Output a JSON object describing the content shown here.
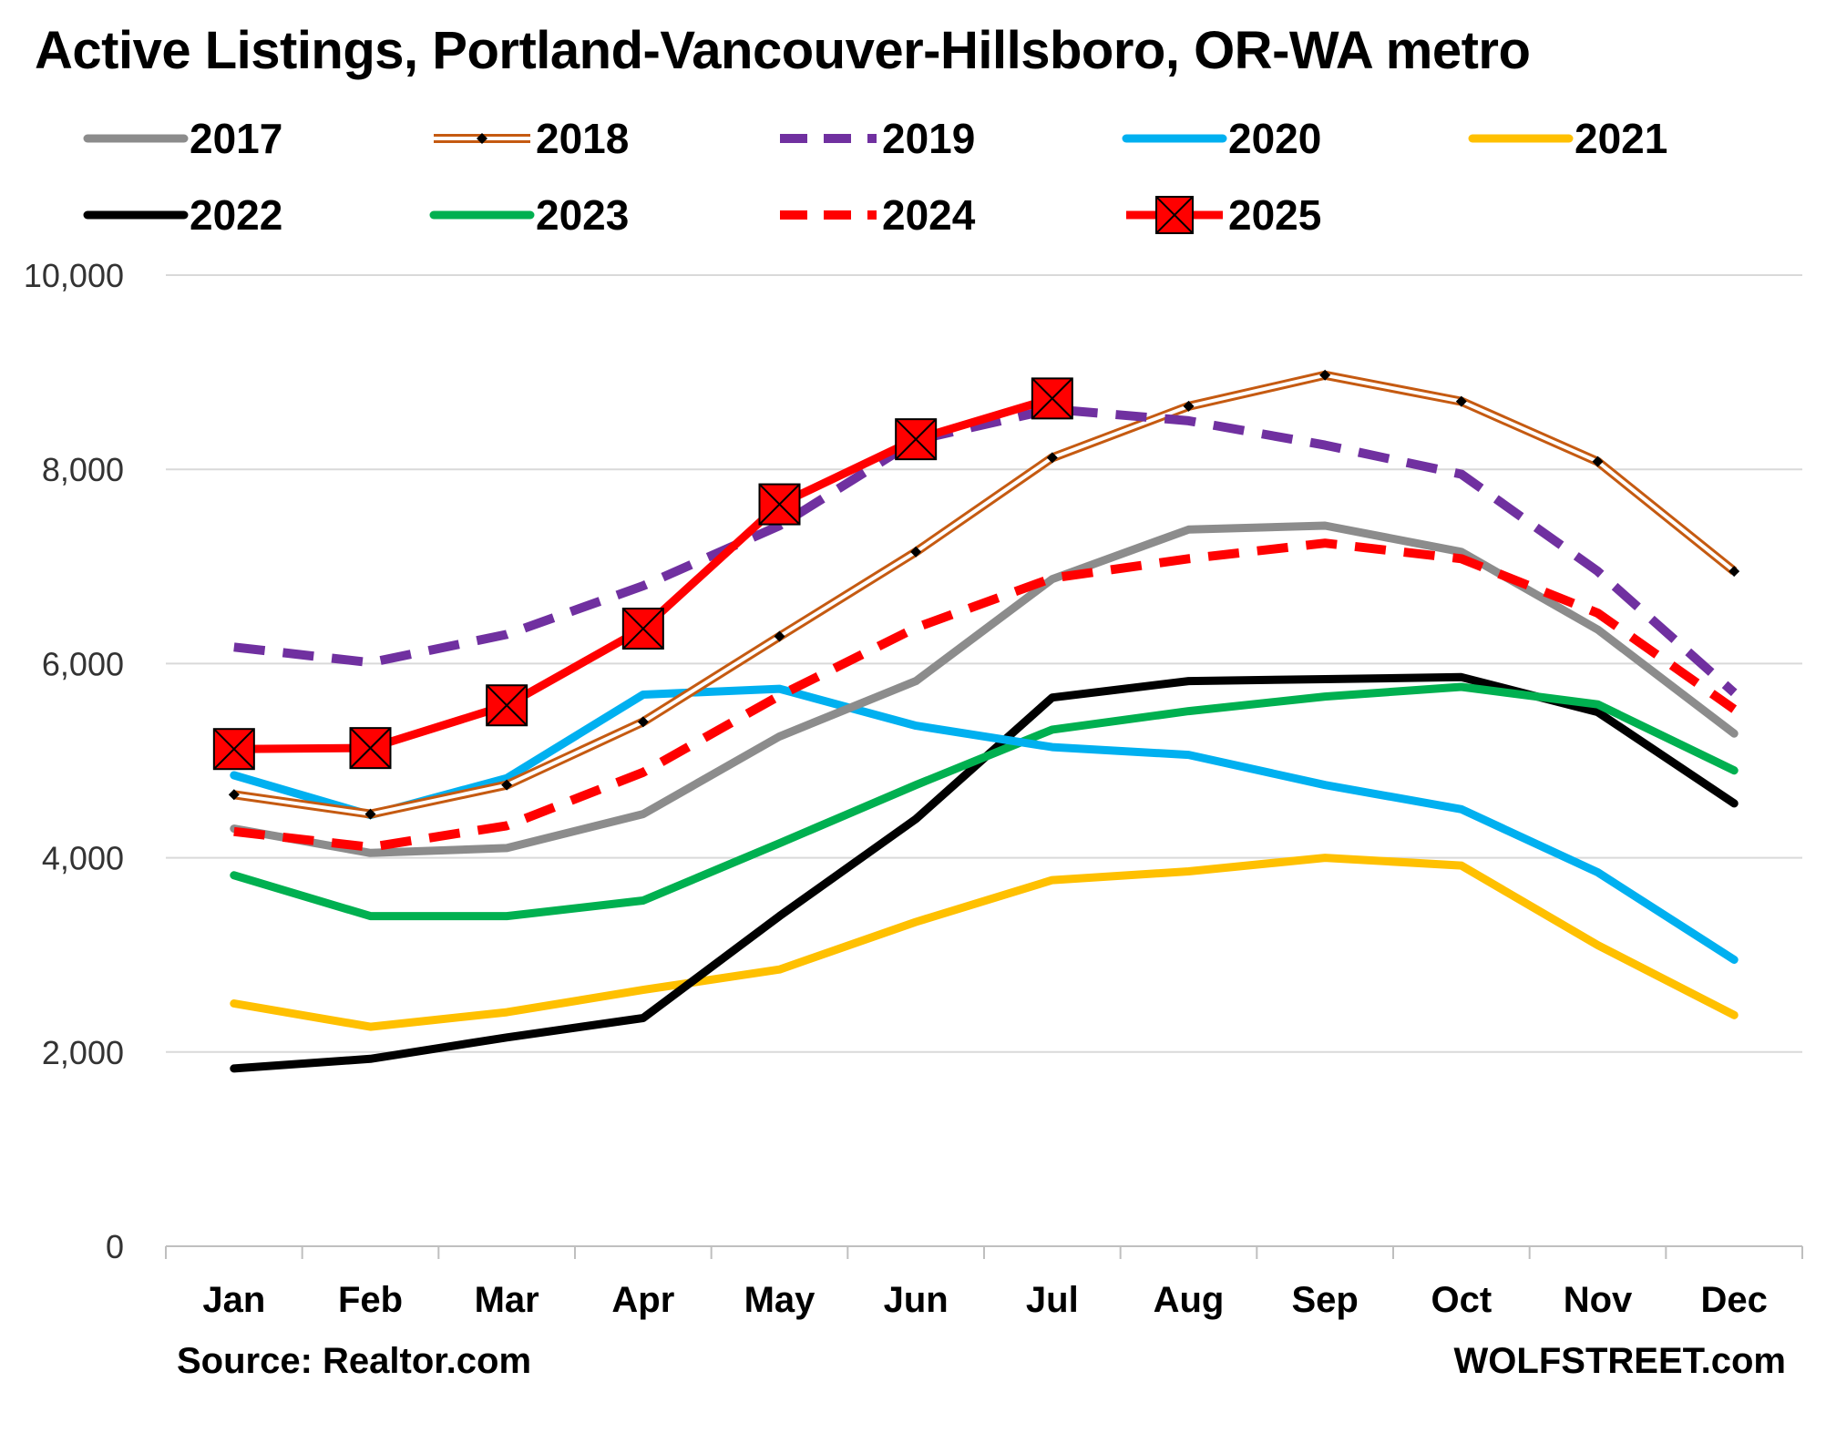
{
  "chart_data": {
    "type": "line",
    "title": "Active Listings, Portland-Vancouver-Hillsboro, OR-WA metro",
    "categories": [
      "Jan",
      "Feb",
      "Mar",
      "Apr",
      "May",
      "Jun",
      "Jul",
      "Aug",
      "Sep",
      "Oct",
      "Nov",
      "Dec"
    ],
    "y_ticks": [
      "0",
      "2,000",
      "4,000",
      "6,000",
      "8,000",
      "10,000"
    ],
    "ylim": [
      0,
      10000
    ],
    "grid": true,
    "legend_position": "top",
    "series": [
      {
        "name": "2017",
        "color": "#8c8c8c",
        "style": "solid",
        "values": [
          4300,
          4050,
          4100,
          4450,
          5250,
          5820,
          6870,
          7380,
          7420,
          7150,
          6350,
          5280
        ]
      },
      {
        "name": "2018",
        "color": "#c55a11",
        "style": "double-diamond",
        "values": [
          4650,
          4450,
          4750,
          5400,
          6280,
          7150,
          8120,
          8650,
          8970,
          8700,
          8080,
          6950
        ]
      },
      {
        "name": "2019",
        "color": "#7030a0",
        "style": "dashed",
        "values": [
          6170,
          6010,
          6300,
          6800,
          7420,
          8300,
          8620,
          8500,
          8250,
          7950,
          6950,
          5700
        ]
      },
      {
        "name": "2020",
        "color": "#00b0f0",
        "style": "solid",
        "values": [
          4850,
          4440,
          4820,
          5680,
          5740,
          5360,
          5140,
          5060,
          4750,
          4500,
          3850,
          2950
        ]
      },
      {
        "name": "2021",
        "color": "#ffc000",
        "style": "solid",
        "values": [
          2500,
          2260,
          2410,
          2640,
          2850,
          3340,
          3770,
          3860,
          4000,
          3920,
          3100,
          2380
        ]
      },
      {
        "name": "2022",
        "color": "#000000",
        "style": "solid",
        "values": [
          1830,
          1930,
          2150,
          2350,
          3400,
          4400,
          5650,
          5820,
          5840,
          5860,
          5500,
          4560
        ]
      },
      {
        "name": "2023",
        "color": "#00b050",
        "style": "solid",
        "values": [
          3820,
          3400,
          3400,
          3560,
          4150,
          4750,
          5320,
          5510,
          5660,
          5760,
          5580,
          4900
        ]
      },
      {
        "name": "2024",
        "color": "#ff0000",
        "style": "dashed",
        "values": [
          4270,
          4110,
          4330,
          4880,
          5670,
          6370,
          6880,
          7080,
          7240,
          7080,
          6520,
          5530
        ]
      },
      {
        "name": "2025",
        "color": "#ff0000",
        "style": "solid-square-x",
        "values": [
          5120,
          5130,
          5570,
          6360,
          7640,
          8310,
          8730,
          null,
          null,
          null,
          null,
          null
        ]
      }
    ]
  },
  "footer": {
    "source": "Source: Realtor.com",
    "brand": "WOLFSTREET.com"
  }
}
